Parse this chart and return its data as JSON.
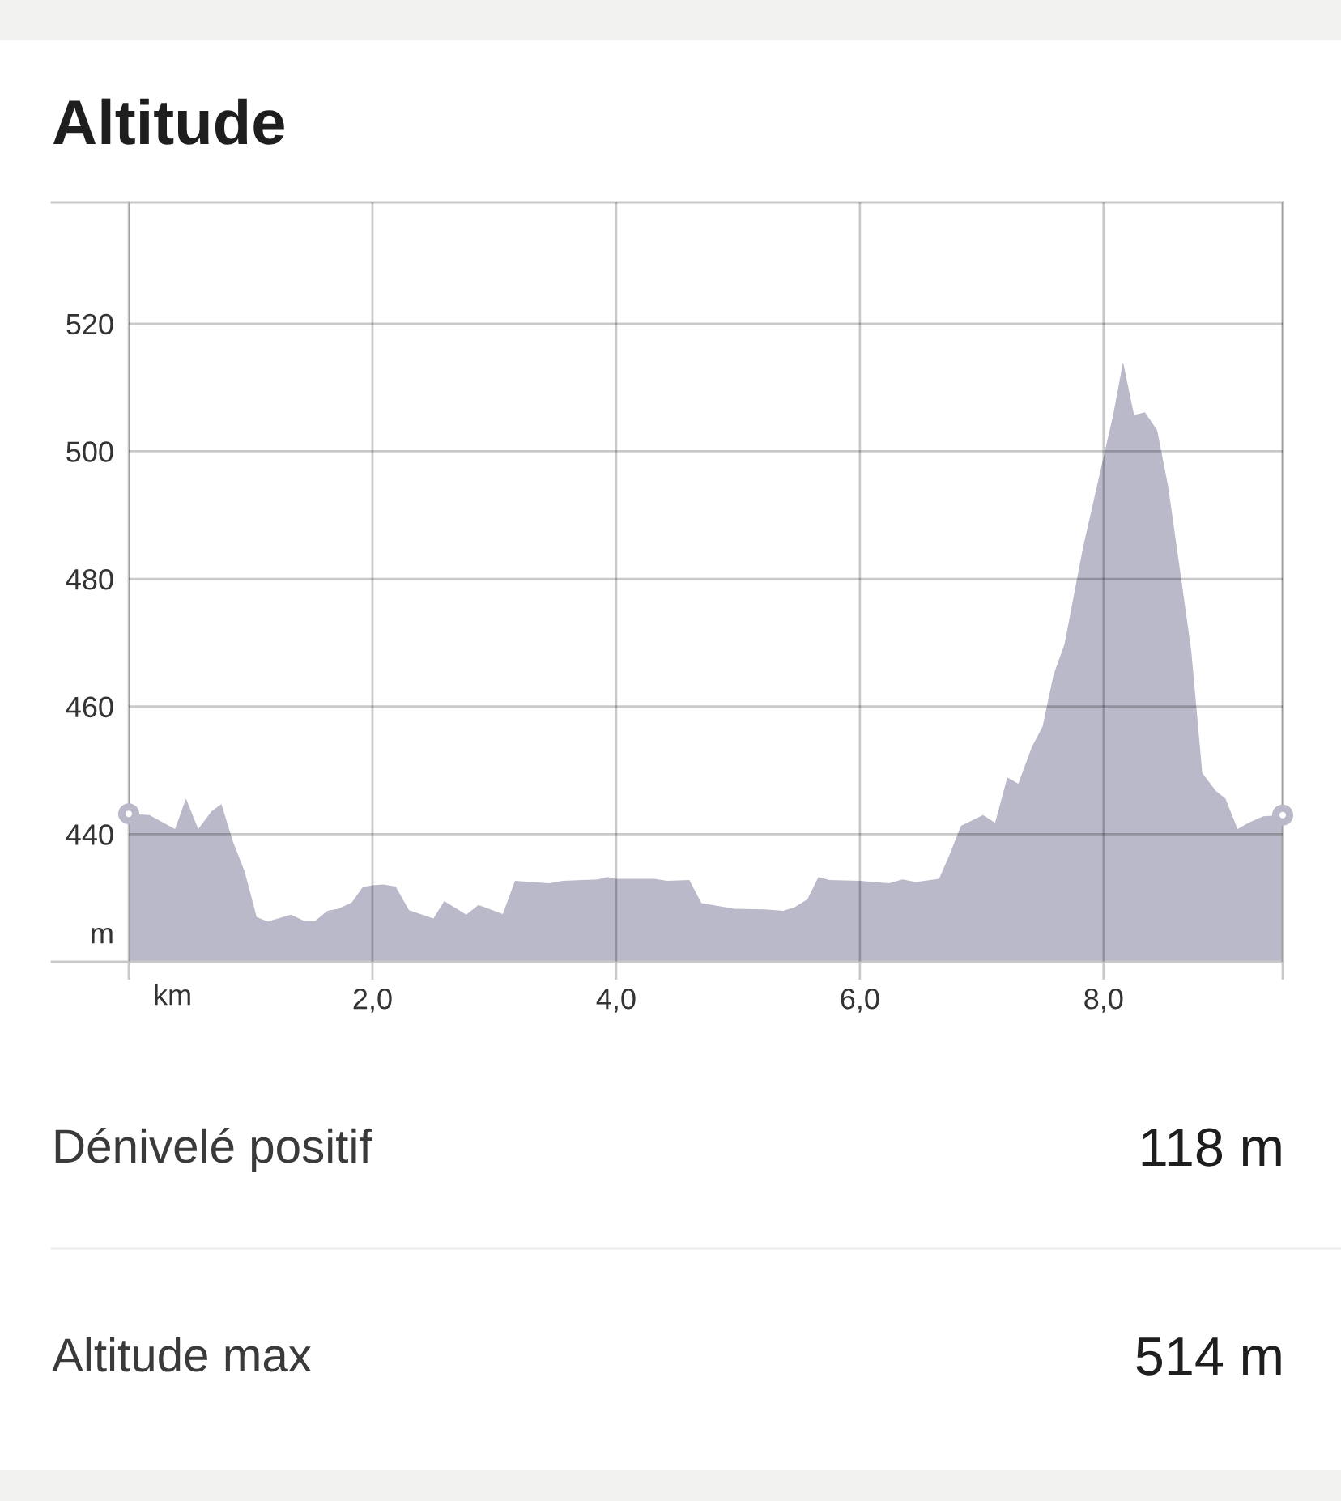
{
  "chart_data": {
    "type": "area",
    "title": "Altitude",
    "xlabel": "km",
    "ylabel": "m",
    "x": [
      0,
      0.17,
      0.38,
      0.47,
      0.57,
      0.68,
      0.76,
      0.86,
      0.95,
      1.05,
      1.14,
      1.33,
      1.44,
      1.53,
      1.63,
      1.72,
      1.83,
      1.92,
      2.0,
      2.09,
      2.19,
      2.3,
      2.5,
      2.59,
      2.77,
      2.87,
      3.07,
      3.17,
      3.45,
      3.56,
      3.85,
      3.93,
      4.0,
      4.31,
      4.42,
      4.6,
      4.7,
      4.97,
      5.22,
      5.37,
      5.46,
      5.57,
      5.66,
      5.75,
      6.0,
      6.24,
      6.35,
      6.46,
      6.65,
      6.73,
      6.83,
      7.01,
      7.11,
      7.21,
      7.3,
      7.41,
      7.5,
      7.59,
      7.68,
      7.83,
      7.97,
      8.08,
      8.16,
      8.25,
      8.34,
      8.44,
      8.53,
      8.63,
      8.72,
      8.81,
      8.92,
      9.0,
      9.1,
      9.19,
      9.31,
      9.47
    ],
    "series": [
      {
        "color": "#b9b9c9",
        "values": [
          443.2,
          443.0,
          440.8,
          445.6,
          440.8,
          443.6,
          444.7,
          438.6,
          434.2,
          427.0,
          426.3,
          427.4,
          426.4,
          426.4,
          428.0,
          428.3,
          429.3,
          431.7,
          432.0,
          432.1,
          431.8,
          428.1,
          426.8,
          429.5,
          427.4,
          428.9,
          427.5,
          432.7,
          432.3,
          432.7,
          432.9,
          433.3,
          433.0,
          433.0,
          432.7,
          432.8,
          429.2,
          428.3,
          428.2,
          428.0,
          428.5,
          429.8,
          433.3,
          432.8,
          432.7,
          432.3,
          432.9,
          432.5,
          433.0,
          436.5,
          441.3,
          443.0,
          441.8,
          448.9,
          447.9,
          453.6,
          456.9,
          465.0,
          469.8,
          484.8,
          496.6,
          505.8,
          514.0,
          505.7,
          506.1,
          503.3,
          494.5,
          481.0,
          468.7,
          449.6,
          446.8,
          445.6,
          440.8,
          441.8,
          442.8,
          443.0
        ]
      },
      {
        "type": "scatter",
        "color": "#b9b9c9",
        "marker": "circle",
        "x": [
          0,
          9.47
        ],
        "values": [
          443.2,
          443.0
        ]
      }
    ],
    "xlim": [
      0,
      9.47
    ],
    "xticks": [
      {
        "value": 0,
        "label": null
      },
      {
        "value": 2,
        "label": "2,0"
      },
      {
        "value": 4,
        "label": "4,0"
      },
      {
        "value": 6,
        "label": "6,0"
      },
      {
        "value": 8,
        "label": "8,0"
      },
      {
        "value": 9.47,
        "label": null
      }
    ],
    "ylim": [
      420,
      539
    ],
    "yticks": [
      440,
      460,
      480,
      500,
      520
    ],
    "grid": true,
    "annotations": [
      "Dénivelé positif",
      "118 m",
      "Altitude max",
      "514 m"
    ]
  }
}
